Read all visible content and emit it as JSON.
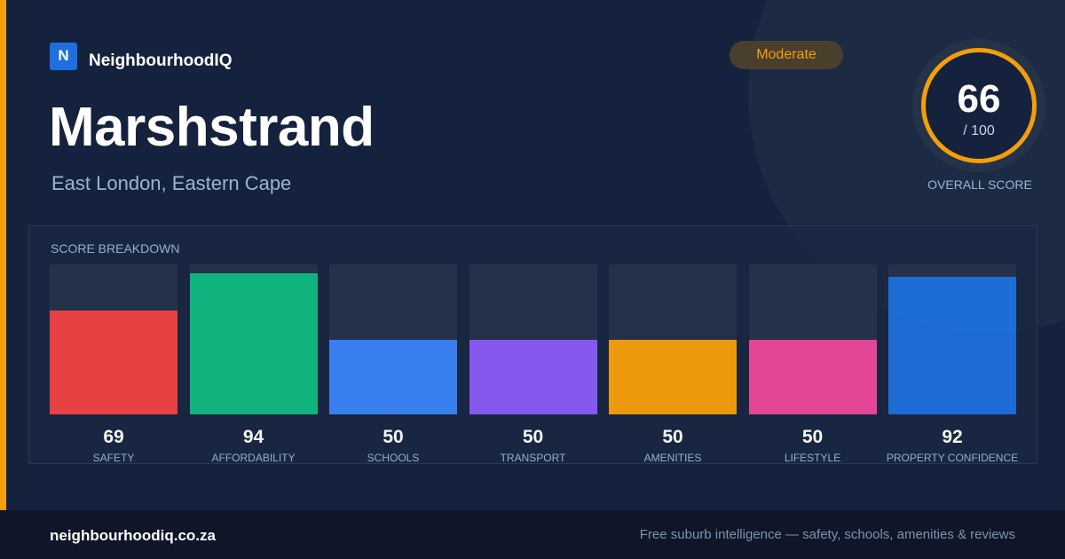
{
  "brand": {
    "logo_letter": "N",
    "name": "NeighbourhoodIQ"
  },
  "suburb": {
    "name": "Marshstrand",
    "location": "East London, Eastern Cape"
  },
  "badge": {
    "label": "Moderate",
    "color": "#f59e0b"
  },
  "overall": {
    "score": "66",
    "max": "/ 100",
    "label": "OVERALL SCORE"
  },
  "breakdown": {
    "title": "SCORE BREAKDOWN"
  },
  "chart_data": {
    "type": "bar",
    "title": "SCORE BREAKDOWN",
    "categories": [
      "SAFETY",
      "AFFORDABILITY",
      "SCHOOLS",
      "TRANSPORT",
      "AMENITIES",
      "LIFESTYLE",
      "PROPERTY CONFIDENCE"
    ],
    "values": [
      69,
      94,
      50,
      50,
      50,
      50,
      92
    ],
    "colors": [
      "#ef4444",
      "#10b981",
      "#3b82f6",
      "#8b5cf6",
      "#f59e0b",
      "#ec4899",
      "#1f6fdc"
    ],
    "ylim": [
      0,
      100
    ],
    "grid": false,
    "legend": "none"
  },
  "footer": {
    "domain": "neighbourhoodiq.co.za",
    "tagline": "Free suburb intelligence — safety, schools, amenities & reviews"
  }
}
